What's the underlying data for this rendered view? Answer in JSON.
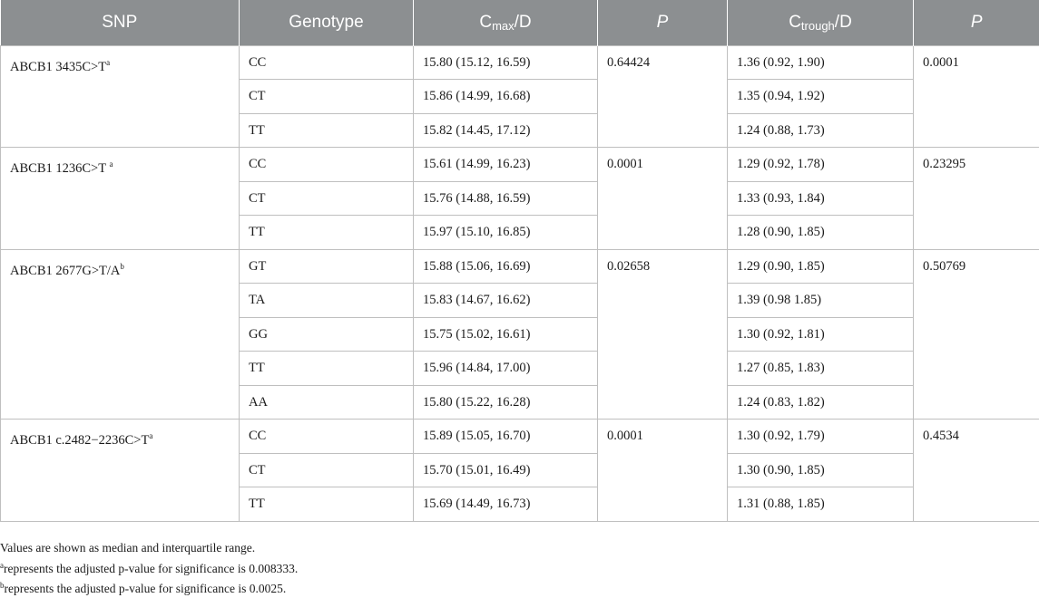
{
  "header": {
    "snp": "SNP",
    "genotype": "Genotype",
    "cmax_main": "C",
    "cmax_sub": "max",
    "cmax_tail": "/D",
    "p1": "P",
    "ctrough_main": "C",
    "ctrough_sub": "trough",
    "ctrough_tail": "/D",
    "p2": "P"
  },
  "groups": [
    {
      "snp": "ABCB1 3435C>T",
      "snp_sup": "a",
      "p_cmax": "0.64424",
      "p_ctrough": "0.0001",
      "rows": [
        {
          "genotype": "CC",
          "cmax": "15.80 (15.12, 16.59)",
          "ctrough": "1.36 (0.92, 1.90)"
        },
        {
          "genotype": "CT",
          "cmax": "15.86 (14.99, 16.68)",
          "ctrough": "1.35 (0.94, 1.92)"
        },
        {
          "genotype": "TT",
          "cmax": "15.82 (14.45, 17.12)",
          "ctrough": "1.24 (0.88, 1.73)"
        }
      ]
    },
    {
      "snp": "ABCB1 1236C>T ",
      "snp_sup": "a",
      "p_cmax": "0.0001",
      "p_ctrough": "0.23295",
      "rows": [
        {
          "genotype": "CC",
          "cmax": "15.61 (14.99, 16.23)",
          "ctrough": "1.29 (0.92, 1.78)"
        },
        {
          "genotype": "CT",
          "cmax": "15.76 (14.88, 16.59)",
          "ctrough": "1.33 (0.93, 1.84)"
        },
        {
          "genotype": "TT",
          "cmax": "15.97 (15.10, 16.85)",
          "ctrough": "1.28 (0.90, 1.85)"
        }
      ]
    },
    {
      "snp": "ABCB1 2677G>T/A",
      "snp_sup": "b",
      "p_cmax": "0.02658",
      "p_ctrough": "0.50769",
      "rows": [
        {
          "genotype": "GT",
          "cmax": "15.88 (15.06, 16.69)",
          "ctrough": "1.29 (0.90, 1.85)"
        },
        {
          "genotype": "TA",
          "cmax": "15.83 (14.67, 16.62)",
          "ctrough": "1.39 (0.98 1.85)"
        },
        {
          "genotype": "GG",
          "cmax": "15.75 (15.02, 16.61)",
          "ctrough": "1.30 (0.92, 1.81)"
        },
        {
          "genotype": "TT",
          "cmax": "15.96 (14.84, 17.00)",
          "ctrough": "1.27 (0.85, 1.83)"
        },
        {
          "genotype": "AA",
          "cmax": "15.80 (15.22, 16.28)",
          "ctrough": "1.24 (0.83, 1.82)"
        }
      ]
    },
    {
      "snp": "ABCB1 c.2482−2236C>T",
      "snp_sup": "a",
      "p_cmax": "0.0001",
      "p_ctrough": "0.4534",
      "rows": [
        {
          "genotype": "CC",
          "cmax": "15.89 (15.05, 16.70)",
          "ctrough": "1.30 (0.92, 1.79)"
        },
        {
          "genotype": "CT",
          "cmax": "15.70 (15.01, 16.49)",
          "ctrough": "1.30 (0.90, 1.85)"
        },
        {
          "genotype": "TT",
          "cmax": "15.69 (14.49, 16.73)",
          "ctrough": "1.31 (0.88, 1.85)"
        }
      ]
    }
  ],
  "footnotes": {
    "note": "Values are shown as median and interquartile range.",
    "a_sup": "a",
    "a_text": "represents the adjusted p-value for significance is 0.008333.",
    "b_sup": "b",
    "b_text": "represents the adjusted p-value for significance is 0.0025."
  }
}
